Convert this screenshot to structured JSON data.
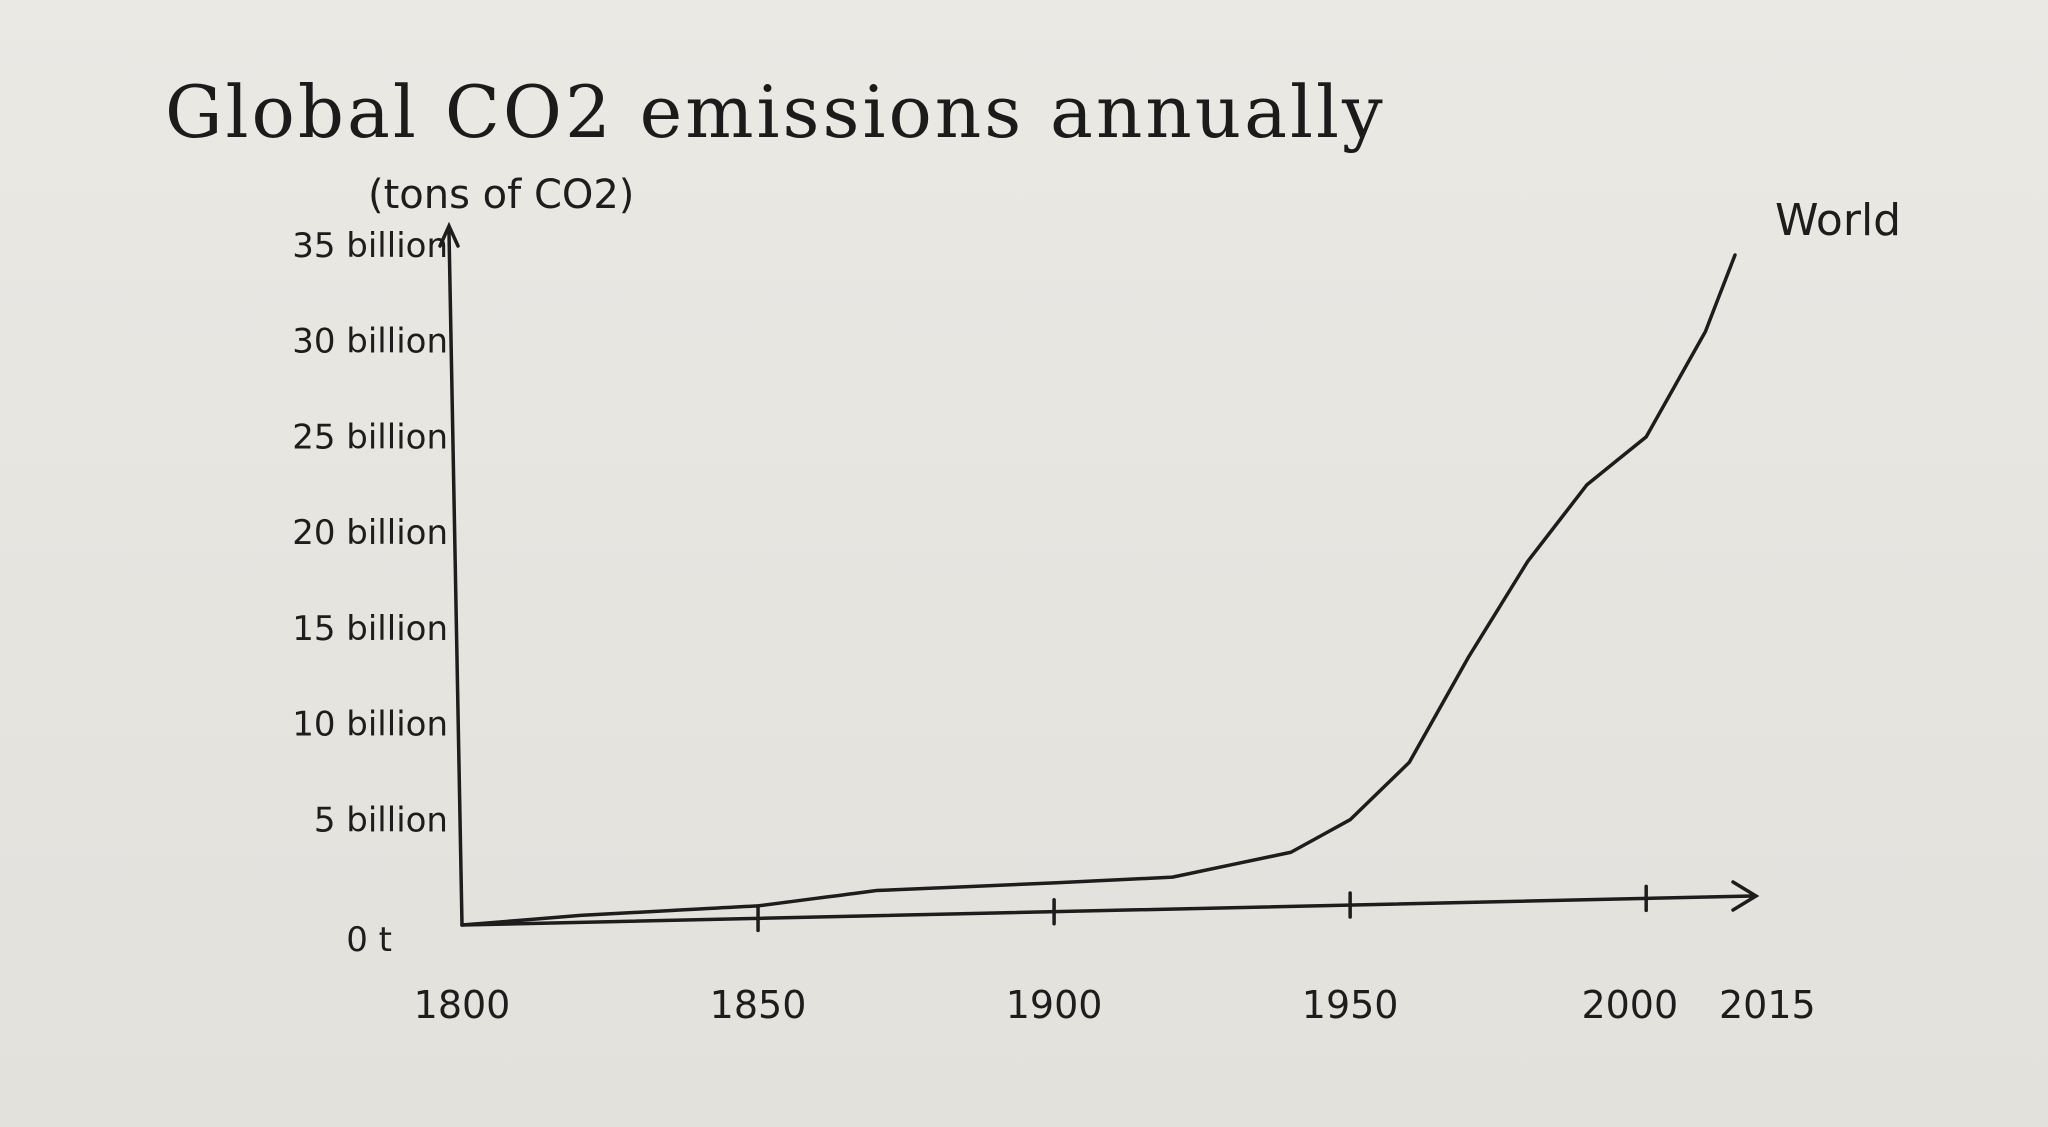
{
  "page": {
    "title": "Global CO2 emissions annually"
  },
  "chart_data": {
    "type": "line",
    "title": "Global CO2 emissions annually",
    "ylabel": "(tons of CO2)",
    "xlabel": "",
    "xlim": [
      1800,
      2015
    ],
    "ylim": [
      0,
      35
    ],
    "x_ticks": [
      {
        "value": 1800,
        "label": "1800"
      },
      {
        "value": 1850,
        "label": "1850"
      },
      {
        "value": 1900,
        "label": "1900"
      },
      {
        "value": 1950,
        "label": "1950"
      },
      {
        "value": 2000,
        "label": "2000"
      },
      {
        "value": 2015,
        "label": "2015"
      }
    ],
    "y_ticks": [
      {
        "value": 0,
        "label": "0 t"
      },
      {
        "value": 5,
        "label": "5 billion"
      },
      {
        "value": 10,
        "label": "10 billion"
      },
      {
        "value": 15,
        "label": "15 billion"
      },
      {
        "value": 20,
        "label": "20 billion"
      },
      {
        "value": 25,
        "label": "25 billion"
      },
      {
        "value": 30,
        "label": "30 billion"
      },
      {
        "value": 35,
        "label": "35 billion"
      }
    ],
    "series": [
      {
        "name": "World",
        "x": [
          1800,
          1820,
          1850,
          1870,
          1900,
          1920,
          1940,
          1950,
          1960,
          1970,
          1980,
          1990,
          2000,
          2010,
          2015
        ],
        "values": [
          0.0,
          0.5,
          1.0,
          1.8,
          2.2,
          2.5,
          3.8,
          5.5,
          8.5,
          14.0,
          19.0,
          23.0,
          25.5,
          31.0,
          35.0
        ]
      }
    ],
    "grid": false,
    "legend": "none"
  }
}
